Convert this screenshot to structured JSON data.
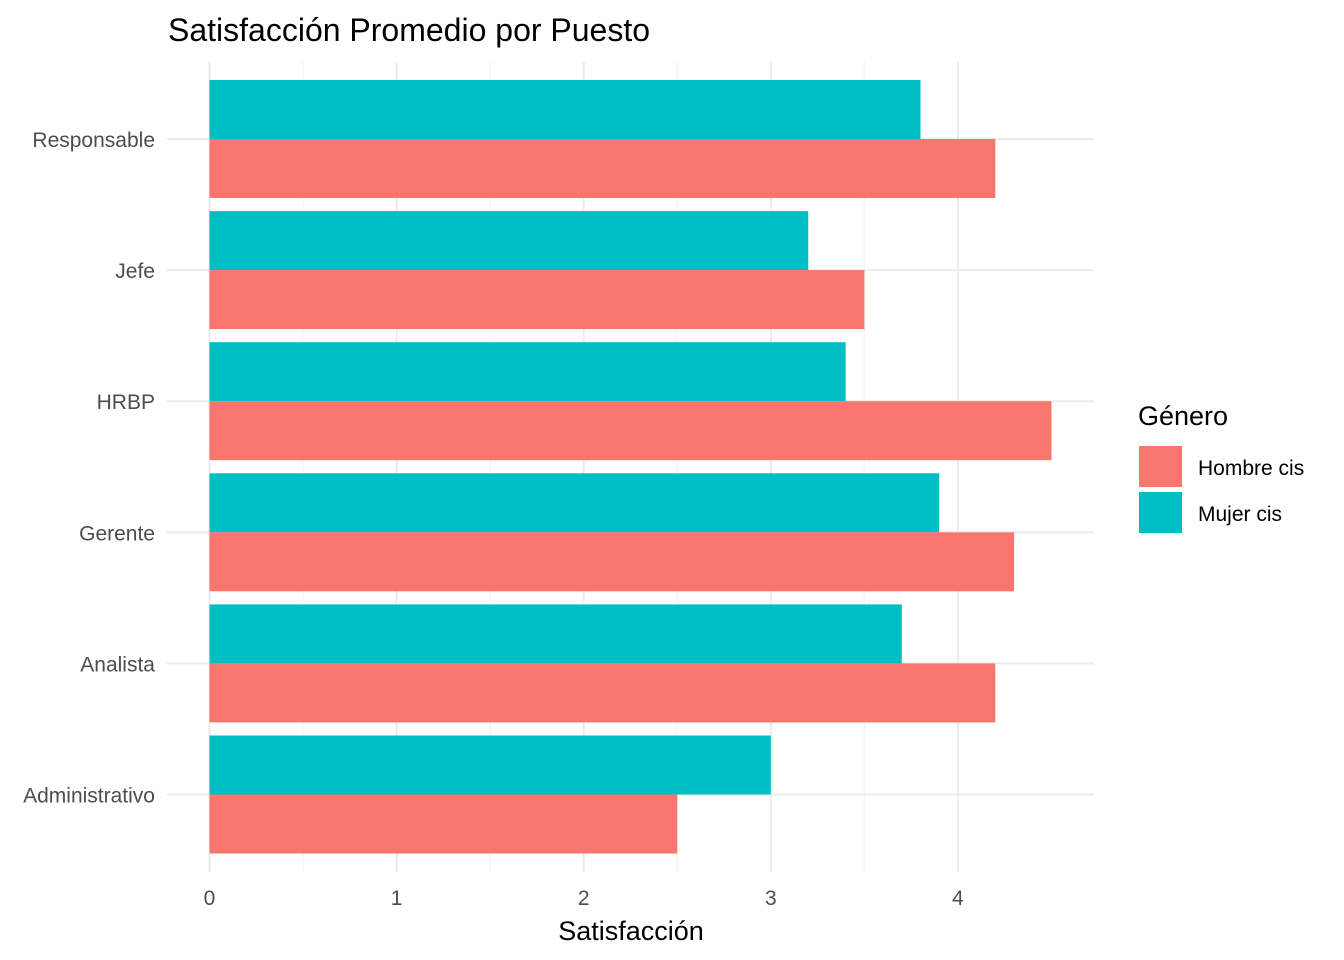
{
  "chart_data": {
    "type": "bar",
    "orientation": "horizontal",
    "title": "Satisfacción Promedio por Puesto",
    "xlabel": "Satisfacción",
    "ylabel": "",
    "categories": [
      "Administrativo",
      "Analista",
      "Gerente",
      "HRBP",
      "Jefe",
      "Responsable"
    ],
    "series": [
      {
        "name": "Hombre cis",
        "color": "#F8766D",
        "values": [
          2.5,
          4.2,
          4.3,
          4.5,
          3.5,
          4.2
        ]
      },
      {
        "name": "Mujer cis",
        "color": "#00BFC4",
        "values": [
          3.0,
          3.7,
          3.9,
          3.4,
          3.2,
          3.8
        ]
      }
    ],
    "xlim": [
      0,
      4.5
    ],
    "xticks": [
      0,
      1,
      2,
      3,
      4
    ],
    "grid": true,
    "legend": {
      "title": "Género",
      "position": "right"
    }
  }
}
